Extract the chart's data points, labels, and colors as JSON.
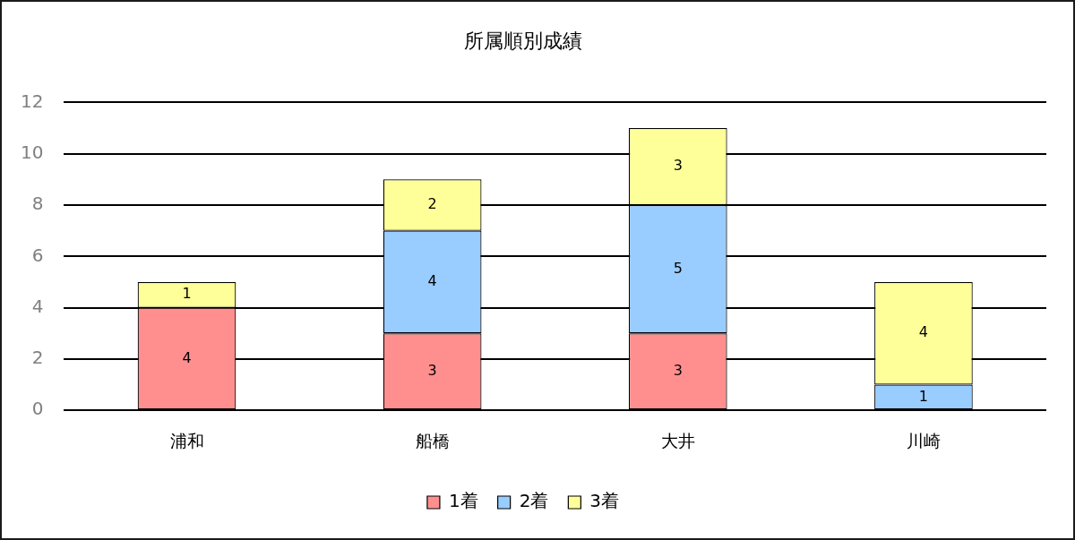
{
  "chart_data": {
    "type": "bar",
    "title": "所属順別成績",
    "categories": [
      "浦和",
      "船橋",
      "大井",
      "川崎"
    ],
    "series": [
      {
        "name": "1着",
        "color": "#ff8f8f",
        "values": [
          4,
          3,
          3,
          null
        ]
      },
      {
        "name": "2着",
        "color": "#99ccff",
        "values": [
          null,
          4,
          5,
          1
        ]
      },
      {
        "name": "3着",
        "color": "#ffff99",
        "values": [
          1,
          2,
          3,
          4
        ]
      }
    ],
    "stacked": true,
    "ylim": [
      0,
      12
    ],
    "yticks": [
      0,
      2,
      4,
      6,
      8,
      10,
      12
    ],
    "grid": "y",
    "legend": "bottom",
    "data_labels": true
  }
}
